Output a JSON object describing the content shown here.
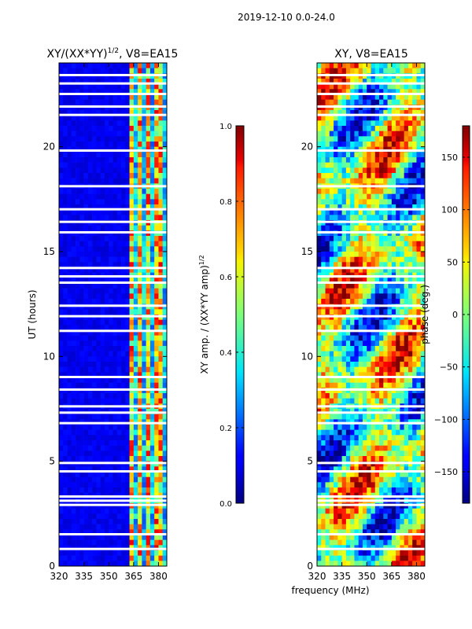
{
  "figure": {
    "suptitle": "2019-12-10 0.0-24.0",
    "xlabel": "frequency (MHz)"
  },
  "chart_data": [
    {
      "type": "heatmap",
      "title": "XY/(XX*YY)",
      "title_exponent": "1/2",
      "title_suffix": ", V8=EA15",
      "xlabel": "",
      "ylabel": "UT (hours)",
      "xlim": [
        320,
        385
      ],
      "ylim": [
        0,
        24
      ],
      "xticks": [
        "320",
        "335",
        "350",
        "365",
        "380"
      ],
      "xtick_values": [
        320,
        335,
        350,
        365,
        380
      ],
      "yticks": [
        "0",
        "5",
        "10",
        "15",
        "20"
      ],
      "ytick_values": [
        0,
        5,
        10,
        15,
        20
      ],
      "colorbar": {
        "label": "XY amp. / (XX*YY amp)",
        "label_exponent": "1/2",
        "range": [
          0.0,
          1.0
        ],
        "ticks": [
          "0.0",
          "0.2",
          "0.4",
          "0.6",
          "0.8",
          "1.0"
        ],
        "tick_values": [
          0.0,
          0.2,
          0.4,
          0.6,
          0.8,
          1.0
        ],
        "colormap": "jet"
      },
      "bright_channels_mhz": [
        364,
        369,
        374,
        380
      ],
      "flagged_hours": [
        0.8,
        1.5,
        2.9,
        3.1,
        3.3,
        4.5,
        4.9,
        6.8,
        7.3,
        7.6,
        8.4,
        9.0,
        11.2,
        11.9,
        12.4,
        13.5,
        13.8,
        14.2,
        15.9,
        16.4,
        17.0,
        18.1,
        19.8,
        21.5,
        21.9,
        22.5,
        23.0,
        23.4
      ]
    },
    {
      "type": "heatmap",
      "title": "XY, V8=EA15",
      "xlabel": "",
      "ylabel": "",
      "xlim": [
        320,
        385
      ],
      "ylim": [
        0,
        24
      ],
      "xticks": [
        "320",
        "335",
        "350",
        "365",
        "380"
      ],
      "xtick_values": [
        320,
        335,
        350,
        365,
        380
      ],
      "yticks": [
        "0",
        "5",
        "10",
        "15",
        "20"
      ],
      "ytick_values": [
        0,
        5,
        10,
        15,
        20
      ],
      "colorbar": {
        "label": "phase (deg.)",
        "range": [
          -180,
          180
        ],
        "ticks": [
          "−150",
          "−100",
          "−50",
          "0",
          "50",
          "100",
          "150"
        ],
        "tick_values": [
          -150,
          -100,
          -50,
          0,
          50,
          100,
          150
        ],
        "colormap": "jet"
      },
      "flagged_hours": [
        0.8,
        1.5,
        2.9,
        3.1,
        3.3,
        4.5,
        4.9,
        6.8,
        7.3,
        7.6,
        8.4,
        9.0,
        11.2,
        11.9,
        12.4,
        13.5,
        13.8,
        14.2,
        15.9,
        16.4,
        17.0,
        18.1,
        19.8,
        21.5,
        21.9,
        22.5,
        23.0,
        23.4
      ]
    }
  ]
}
